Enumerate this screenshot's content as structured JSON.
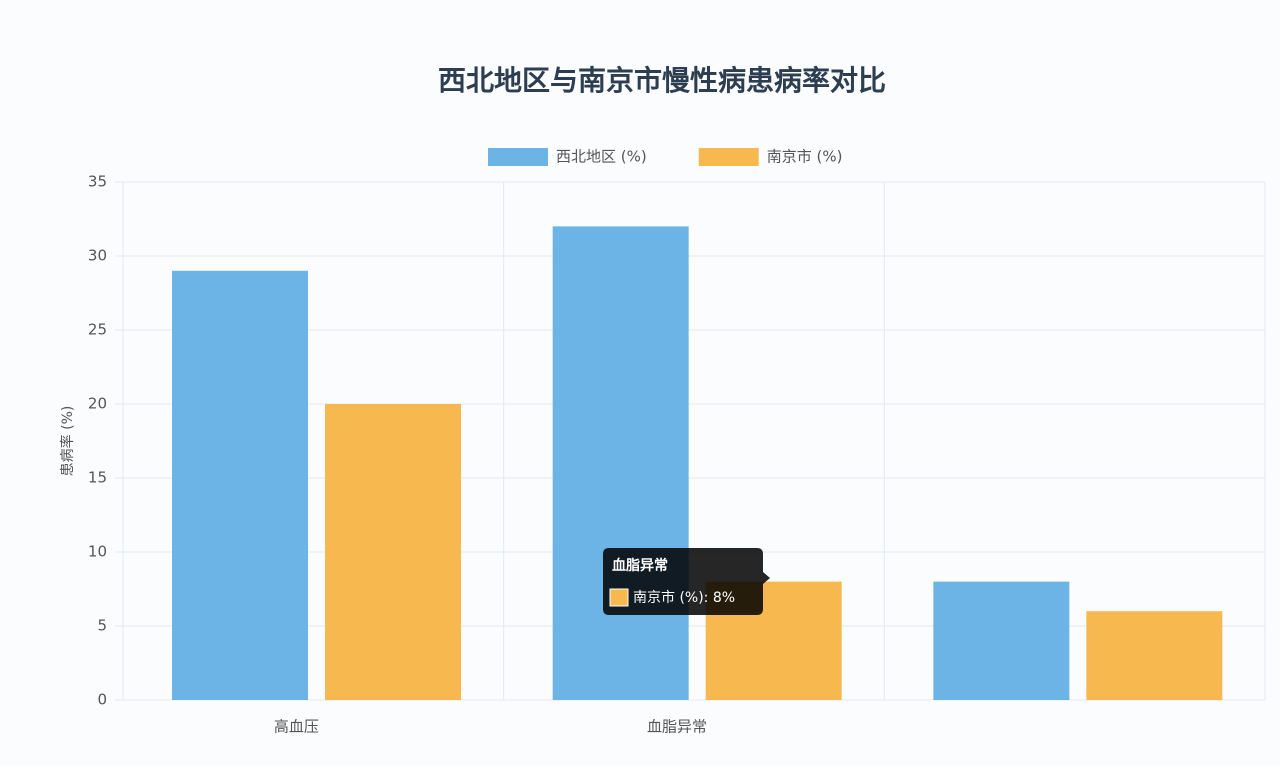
{
  "chart_data": {
    "type": "bar",
    "title": "西北地区与南京市慢性病患病率对比",
    "y_label": "患病率 (%)",
    "categories": [
      "高血压",
      "血脂异常",
      null
    ],
    "series": [
      {
        "name": "西北地区 (%)",
        "color": "#6cb4e6",
        "values": [
          29,
          32,
          8
        ]
      },
      {
        "name": "南京市 (%)",
        "color": "#f6b84f",
        "values": [
          20,
          8,
          6
        ]
      }
    ],
    "ylim": [
      0,
      35
    ],
    "yticks": [
      0,
      5,
      10,
      15,
      20,
      25,
      30,
      35
    ],
    "grid": true,
    "legend": "top",
    "tooltip": {
      "title": "血脂异常",
      "text": "南京市 (%): 8%"
    }
  }
}
